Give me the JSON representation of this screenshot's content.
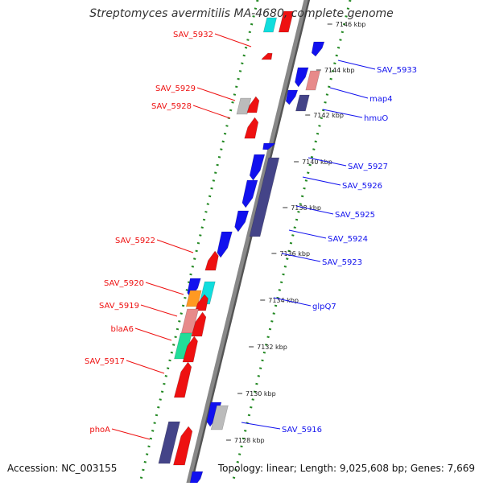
{
  "title": "Streptomyces avermitilis MA-4680, complete genome",
  "footer": {
    "accession": "Accession: NC_003155",
    "summary": "Topology: linear; Length: 9,025,608 bp; Genes: 7,669"
  },
  "colors": {
    "forward": "#ee1111",
    "reverse": "#1111ee",
    "dark": "#444488",
    "pink": "#e78a8a",
    "gray": "#bbbbbb",
    "cyan": "#11dddd",
    "orange": "#ff9922",
    "teal": "#22dd99",
    "backbone": "#888888",
    "tick": "#228822"
  },
  "ticks": [
    {
      "label": "7146 kbp"
    },
    {
      "label": "7144 kbp"
    },
    {
      "label": "7142 kbp"
    },
    {
      "label": "7140 kbp"
    },
    {
      "label": "7138 kbp"
    },
    {
      "label": "7136 kbp"
    },
    {
      "label": "7134 kbp"
    },
    {
      "label": "7132 kbp"
    },
    {
      "label": "7130 kbp"
    },
    {
      "label": "7128 kbp"
    }
  ],
  "left_labels": [
    {
      "text": "SAV_5932"
    },
    {
      "text": "SAV_5929"
    },
    {
      "text": "SAV_5928"
    },
    {
      "text": "SAV_5922"
    },
    {
      "text": "SAV_5920"
    },
    {
      "text": "SAV_5919"
    },
    {
      "text": "blaA6"
    },
    {
      "text": "SAV_5917"
    },
    {
      "text": "phoA"
    }
  ],
  "right_labels": [
    {
      "text": "SAV_5933"
    },
    {
      "text": "map4"
    },
    {
      "text": "hmuO"
    },
    {
      "text": "SAV_5927"
    },
    {
      "text": "SAV_5926"
    },
    {
      "text": "SAV_5925"
    },
    {
      "text": "SAV_5924"
    },
    {
      "text": "SAV_5923"
    },
    {
      "text": "glpQ7"
    },
    {
      "text": "SAV_5916"
    }
  ]
}
